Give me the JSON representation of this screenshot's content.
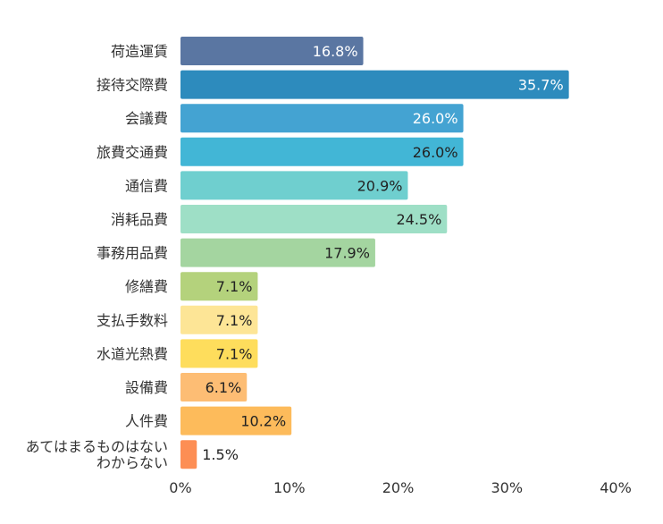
{
  "chart_data": {
    "type": "bar",
    "orientation": "horizontal",
    "title": "",
    "xlabel": "",
    "ylabel": "",
    "xlim": [
      0,
      40
    ],
    "grid": false,
    "legend": "none",
    "categories": [
      "荷造運賃",
      "接待交際費",
      "会議費",
      "旅費交通費",
      "通信費",
      "消耗品費",
      "事務用品費",
      "修繕費",
      "支払手数料",
      "水道光熱費",
      "設備費",
      "人件費",
      "あてはまるものはない\nわからない"
    ],
    "values": [
      16.8,
      35.7,
      26.0,
      26.0,
      20.9,
      24.5,
      17.9,
      7.1,
      7.1,
      7.1,
      6.1,
      10.2,
      1.5
    ],
    "data_labels": [
      "16.8%",
      "35.7%",
      "26.0%",
      "26.0%",
      "20.9%",
      "24.5%",
      "17.9%",
      "7.1%",
      "7.1%",
      "7.1%",
      "6.1%",
      "10.2%",
      "1.5%"
    ],
    "tick_labels": [
      "0%",
      "10%",
      "20%",
      "30%",
      "40%"
    ],
    "tick_values": [
      0,
      10,
      20,
      30,
      40
    ],
    "colors": [
      "#5a76a2",
      "#2d8bbd",
      "#44a3d2",
      "#42b6d6",
      "#6fcfcf",
      "#9edfc6",
      "#a4d5a0",
      "#b4d27c",
      "#fde596",
      "#fedd5c",
      "#fdbd74",
      "#fdbb5b",
      "#fd8e54"
    ],
    "label_colors": [
      "#ffffff",
      "#ffffff",
      "#ffffff",
      "#222222",
      "#222222",
      "#222222",
      "#222222",
      "#222222",
      "#222222",
      "#222222",
      "#222222",
      "#222222",
      "#222222"
    ]
  }
}
